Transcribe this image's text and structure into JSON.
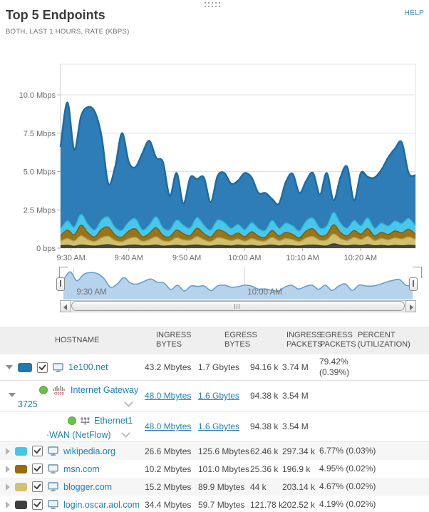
{
  "header": {
    "title": "Top 5 Endpoints",
    "subtitle": "BOTH, LAST 1 HOURS, RATE (KBPS)",
    "help_label": "HELP"
  },
  "chart_data": {
    "type": "area",
    "stacked": true,
    "title": "Top 5 Endpoints",
    "subtitle": "BOTH, LAST 1 HOURS, RATE (KBPS)",
    "unit": "Mbps",
    "x_axis": {
      "span_minutes": 61.3,
      "ticks": [
        {
          "label": "9:30 AM",
          "t": 1.8
        },
        {
          "label": "9:40 AM",
          "t": 11.8
        },
        {
          "label": "9:50 AM",
          "t": 21.8
        },
        {
          "label": "10:00 AM",
          "t": 31.8
        },
        {
          "label": "10:10 AM",
          "t": 41.8
        },
        {
          "label": "10:20 AM",
          "t": 51.8
        }
      ]
    },
    "y_axis": {
      "max": 12,
      "ticks": [
        {
          "label": "0 bps",
          "v": 0
        },
        {
          "label": "2.5 Mbps",
          "v": 2.5
        },
        {
          "label": "5.0 Mbps",
          "v": 5
        },
        {
          "label": "7.5 Mbps",
          "v": 7.5
        },
        {
          "label": "10.0 Mbps",
          "v": 10
        }
      ]
    },
    "stack_order_bottom_up": [
      "login.oscar.aol.com",
      "blogger.com",
      "msn.com",
      "wikipedia.org",
      "1e100.net"
    ],
    "series": [
      {
        "name": "1e100.net",
        "fill": "#2e7db6",
        "stroke": "#1c6ba6",
        "is_total_top": true,
        "values": [
          6.6,
          9.5,
          6.4,
          8.6,
          9.2,
          8.9,
          7.3,
          4.2,
          5.3,
          7.5,
          5.6,
          5.3,
          6.2,
          7.0,
          5.9,
          5.6,
          3.4,
          4.9,
          2.9,
          4.6,
          4.5,
          4.6,
          3.0,
          4.7,
          4.9,
          4.2,
          4.4,
          4.9,
          4.6,
          3.6,
          3.6,
          3.2,
          2.9,
          4.3,
          4.85,
          3.6,
          4.4,
          4.9,
          3.5,
          4.9,
          3.1,
          4.6,
          5.3,
          3.1,
          4.9,
          4.65,
          4.6,
          5.1,
          5.9,
          6.5,
          6.9,
          4.9,
          4.75
        ]
      },
      {
        "name": "wikipedia.org",
        "fill": "#49c7e9",
        "stroke": "#28b4de",
        "values": [
          0.45,
          0.6,
          0.5,
          0.7,
          0.55,
          0.45,
          0.6,
          0.65,
          0.5,
          0.45,
          0.6,
          0.65,
          0.45,
          0.55,
          0.7,
          0.5,
          0.45,
          0.65,
          0.55,
          0.5,
          0.7,
          0.55,
          0.45,
          0.65,
          0.6,
          0.5,
          0.55,
          0.45,
          0.6,
          0.5,
          0.45,
          0.65,
          0.5,
          0.6,
          0.55,
          0.45,
          0.65,
          0.7,
          0.5,
          0.55,
          0.8,
          0.6,
          0.5,
          0.65,
          0.55,
          0.7,
          0.5,
          0.6,
          0.55,
          0.65,
          0.6,
          0.7,
          0.55
        ]
      },
      {
        "name": "msn.com",
        "fill": "#9b7415",
        "stroke": "#7c5c0f",
        "values": [
          0.35,
          0.55,
          0.4,
          0.7,
          0.45,
          0.3,
          0.55,
          0.6,
          0.35,
          0.3,
          0.5,
          0.55,
          0.3,
          0.4,
          0.6,
          0.35,
          0.3,
          0.5,
          0.4,
          0.3,
          0.55,
          0.4,
          0.3,
          0.5,
          0.45,
          0.3,
          0.4,
          0.3,
          0.45,
          0.3,
          0.25,
          0.45,
          0.3,
          0.4,
          0.35,
          0.25,
          0.45,
          0.5,
          0.3,
          0.35,
          0.6,
          0.4,
          0.3,
          0.45,
          0.35,
          0.5,
          0.3,
          0.4,
          0.35,
          0.45,
          0.4,
          0.5,
          0.35
        ]
      },
      {
        "name": "blogger.com",
        "fill": "#cec06f",
        "stroke": "#b2a256",
        "values": [
          0.3,
          0.45,
          0.35,
          0.6,
          0.4,
          0.3,
          0.5,
          0.55,
          0.35,
          0.3,
          0.45,
          0.5,
          0.3,
          0.4,
          0.55,
          0.35,
          0.3,
          0.5,
          0.4,
          0.35,
          0.55,
          0.4,
          0.3,
          0.5,
          0.45,
          0.35,
          0.4,
          0.3,
          0.45,
          0.35,
          0.3,
          0.5,
          0.35,
          0.45,
          0.4,
          0.3,
          0.5,
          0.55,
          0.35,
          0.4,
          0.65,
          0.45,
          0.35,
          0.5,
          0.4,
          0.55,
          0.35,
          0.45,
          0.4,
          0.5,
          0.45,
          0.55,
          0.4
        ]
      },
      {
        "name": "login.oscar.aol.com",
        "fill": "#4b4a42",
        "stroke": "#353430",
        "values": [
          0.15,
          0.18,
          0.12,
          0.2,
          0.16,
          0.13,
          0.18,
          0.22,
          0.15,
          0.12,
          0.17,
          0.2,
          0.14,
          0.16,
          0.19,
          0.13,
          0.15,
          0.18,
          0.14,
          0.17,
          0.2,
          0.15,
          0.13,
          0.18,
          0.16,
          0.14,
          0.19,
          0.15,
          0.17,
          0.13,
          0.16,
          0.2,
          0.14,
          0.18,
          0.15,
          0.13,
          0.17,
          0.2,
          0.16,
          0.14,
          0.28,
          0.18,
          0.15,
          0.2,
          0.16,
          0.22,
          0.15,
          0.18,
          0.14,
          0.17,
          0.15,
          0.18,
          0.16
        ]
      }
    ],
    "range_selector": {
      "fill": "#b6d3ec",
      "stroke": "#5f9bd3",
      "labels": [
        {
          "label": "9:30 AM",
          "t": 1.8
        },
        {
          "label": "10:00 AM",
          "t": 31.8
        }
      ]
    }
  },
  "table": {
    "columns": [
      "HOSTNAME",
      "INGRESS BYTES",
      "EGRESS BYTES",
      "INGRESS PACKETS",
      "EGRESS PACKETS",
      "PERCENT (UTILIZATION)"
    ],
    "rows": [
      {
        "host": "1e100.net",
        "swatch": "#2478ad",
        "checked": true,
        "ingress_bytes": "43.2 Mbytes",
        "egress_bytes": "1.7 Gbytes",
        "ingress_packets": "94.16 k",
        "egress_packets": "3.74 M",
        "percent": "79.42%",
        "percent_sub": "(0.39%)"
      },
      {
        "host": "Internet Gateway",
        "host_line2": "3725",
        "ingress_bytes": "48.0 Mbytes",
        "egress_bytes": "1.6 Gbytes",
        "ingress_packets": "94.38 k",
        "egress_packets": "3.54 M",
        "percent": ""
      },
      {
        "host": "Ethernet1",
        "host_line2": "·WAN (NetFlow)",
        "ingress_bytes": "48.0 Mbytes",
        "egress_bytes": "1.6 Gbytes",
        "ingress_packets": "94.38 k",
        "egress_packets": "3.54 M",
        "percent": ""
      },
      {
        "host": "wikipedia.org",
        "swatch": "#45c6e8",
        "checked": true,
        "ingress_bytes": "26.6 Mbytes",
        "egress_bytes": "125.6 Mbytes",
        "ingress_packets": "62.46 k",
        "egress_packets": "297.34 k",
        "percent": "6.77% (0.03%)"
      },
      {
        "host": "msn.com",
        "swatch": "#9a6b04",
        "checked": true,
        "ingress_bytes": "10.2 Mbytes",
        "egress_bytes": "101.0 Mbytes",
        "ingress_packets": "25.36 k",
        "egress_packets": "196.9 k",
        "percent": "4.95% (0.02%)"
      },
      {
        "host": "blogger.com",
        "swatch": "#d2c173",
        "checked": true,
        "ingress_bytes": "15.2 Mbytes",
        "egress_bytes": "89.9 Mbytes",
        "ingress_packets": "44 k",
        "egress_packets": "203.14 k",
        "percent": "4.67% (0.02%)"
      },
      {
        "host": "login.oscar.aol.com",
        "swatch": "#3f3f3f",
        "checked": true,
        "ingress_bytes": "34.4 Mbytes",
        "egress_bytes": "59.7 Mbytes",
        "ingress_packets": "121.78 k",
        "egress_packets": "202.52 k",
        "percent": "4.19% (0.02%)"
      }
    ]
  }
}
